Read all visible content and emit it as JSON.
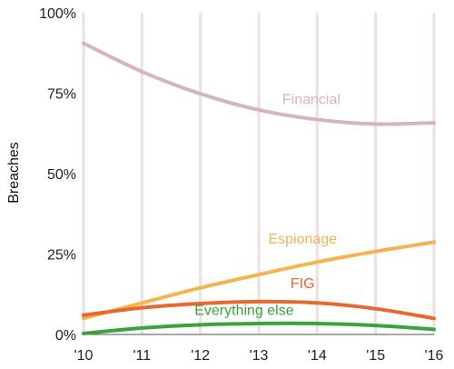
{
  "colors": {
    "background": "#ffffff",
    "gridline": "#ecdfe3",
    "axis": "#555555",
    "text": "#222222"
  },
  "chart_data": {
    "type": "line",
    "title": "",
    "xlabel": "",
    "ylabel": "Breaches",
    "x": [
      "'10",
      "'11",
      "'12",
      "'13",
      "'14",
      "'15",
      "'16"
    ],
    "x_numeric": [
      2010,
      2011,
      2012,
      2013,
      2014,
      2015,
      2016
    ],
    "ylim": [
      0,
      100
    ],
    "ytick_labels": [
      "0%",
      "25%",
      "50%",
      "75%",
      "100%"
    ],
    "yticks": [
      0,
      25,
      50,
      75,
      100
    ],
    "grid": {
      "vertical": true,
      "horizontal": false
    },
    "legend": "inline labels",
    "series": [
      {
        "name": "Financial",
        "color": "#d5b4c0",
        "values": [
          90.5,
          81.7,
          74.8,
          69.8,
          66.8,
          65.4,
          65.8
        ]
      },
      {
        "name": "Espionage",
        "color": "#f3b451",
        "values": [
          5.0,
          9.8,
          14.5,
          18.6,
          22.5,
          25.8,
          28.7
        ]
      },
      {
        "name": "FIG",
        "color": "#e8692d",
        "values": [
          6.0,
          8.3,
          9.6,
          10.2,
          9.8,
          8.0,
          5.0
        ]
      },
      {
        "name": "Everything else",
        "color": "#3ca33c",
        "values": [
          0.3,
          2.0,
          3.0,
          3.4,
          3.4,
          2.8,
          1.6
        ]
      }
    ]
  }
}
